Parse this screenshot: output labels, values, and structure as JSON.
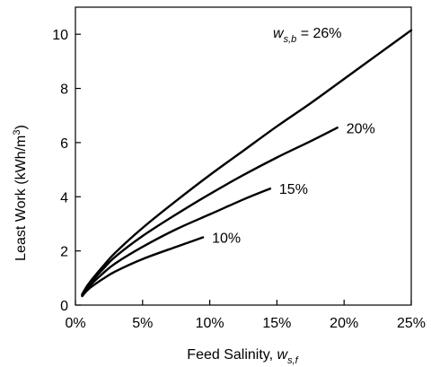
{
  "chart_data": {
    "type": "line",
    "title": "",
    "xlabel": "Feed Salinity, ",
    "xlabel_var": "w",
    "xlabel_sub": "s,f",
    "ylabel": "Least Work (kWh/m",
    "ylabel_sup": "3",
    "ylabel_close": ")",
    "xlim": [
      0,
      0.25
    ],
    "ylim": [
      0,
      11
    ],
    "x_ticks": [
      0,
      0.05,
      0.1,
      0.15,
      0.2,
      0.25
    ],
    "x_tick_labels": [
      "0%",
      "5%",
      "10%",
      "15%",
      "20%",
      "25%"
    ],
    "y_ticks": [
      0,
      2,
      4,
      6,
      8,
      10
    ],
    "y_tick_labels": [
      "0",
      "2",
      "4",
      "6",
      "8",
      "10"
    ],
    "grid": false,
    "annotation": {
      "var": "w",
      "sub": "s,b",
      "text": " = 26%"
    },
    "series": [
      {
        "name": "26%",
        "x": [
          0.005,
          0.01,
          0.02,
          0.03,
          0.05,
          0.075,
          0.1,
          0.125,
          0.15,
          0.175,
          0.2,
          0.225,
          0.25
        ],
        "y": [
          0.4,
          0.8,
          1.4,
          1.95,
          2.85,
          3.85,
          4.8,
          5.7,
          6.6,
          7.45,
          8.35,
          9.25,
          10.15
        ]
      },
      {
        "name": "20%",
        "x": [
          0.005,
          0.01,
          0.02,
          0.03,
          0.05,
          0.075,
          0.1,
          0.125,
          0.15,
          0.175,
          0.195
        ],
        "y": [
          0.38,
          0.75,
          1.3,
          1.8,
          2.55,
          3.35,
          4.1,
          4.8,
          5.45,
          6.05,
          6.55
        ]
      },
      {
        "name": "15%",
        "x": [
          0.005,
          0.01,
          0.02,
          0.03,
          0.05,
          0.075,
          0.1,
          0.125,
          0.145
        ],
        "y": [
          0.36,
          0.68,
          1.15,
          1.55,
          2.15,
          2.8,
          3.35,
          3.9,
          4.3
        ]
      },
      {
        "name": "10%",
        "x": [
          0.005,
          0.01,
          0.02,
          0.03,
          0.05,
          0.075,
          0.095
        ],
        "y": [
          0.33,
          0.6,
          0.95,
          1.25,
          1.7,
          2.15,
          2.5
        ]
      }
    ]
  }
}
